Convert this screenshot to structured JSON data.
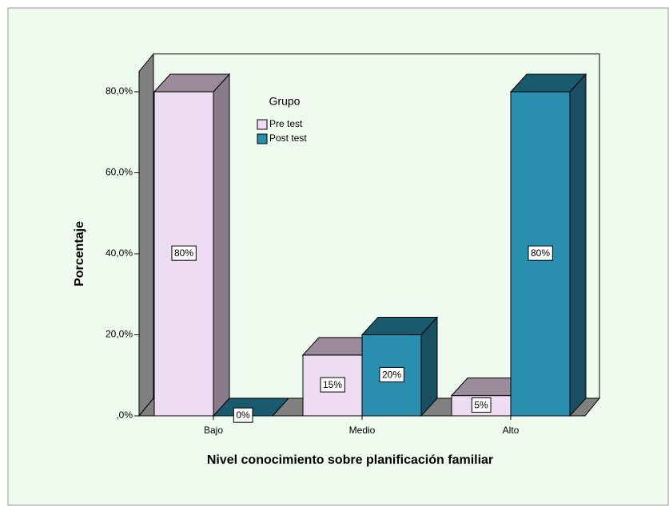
{
  "chart_data": {
    "type": "bar3d",
    "x_label": "Nivel conocimiento sobre planificación familiar",
    "y_label": "Porcentaje",
    "legend_title": "Grupo",
    "categories": [
      "Bajo",
      "Medio",
      "Alto"
    ],
    "series": [
      {
        "name": "Pre test",
        "color": "#eedcf2",
        "values": [
          80,
          15,
          5
        ],
        "value_labels": [
          "80%",
          "15%",
          "5%"
        ]
      },
      {
        "name": "Post test",
        "color": "#2a8fae",
        "values": [
          0,
          20,
          80
        ],
        "value_labels": [
          "0%",
          "20%",
          "80%"
        ]
      }
    ],
    "ylim": [
      0,
      85
    ],
    "yticks": [
      {
        "value": 0,
        "label": ",0%"
      },
      {
        "value": 20,
        "label": "20,0%"
      },
      {
        "value": 40,
        "label": "40,0%"
      },
      {
        "value": 60,
        "label": "60,0%"
      },
      {
        "value": 80,
        "label": "80,0%"
      }
    ]
  }
}
